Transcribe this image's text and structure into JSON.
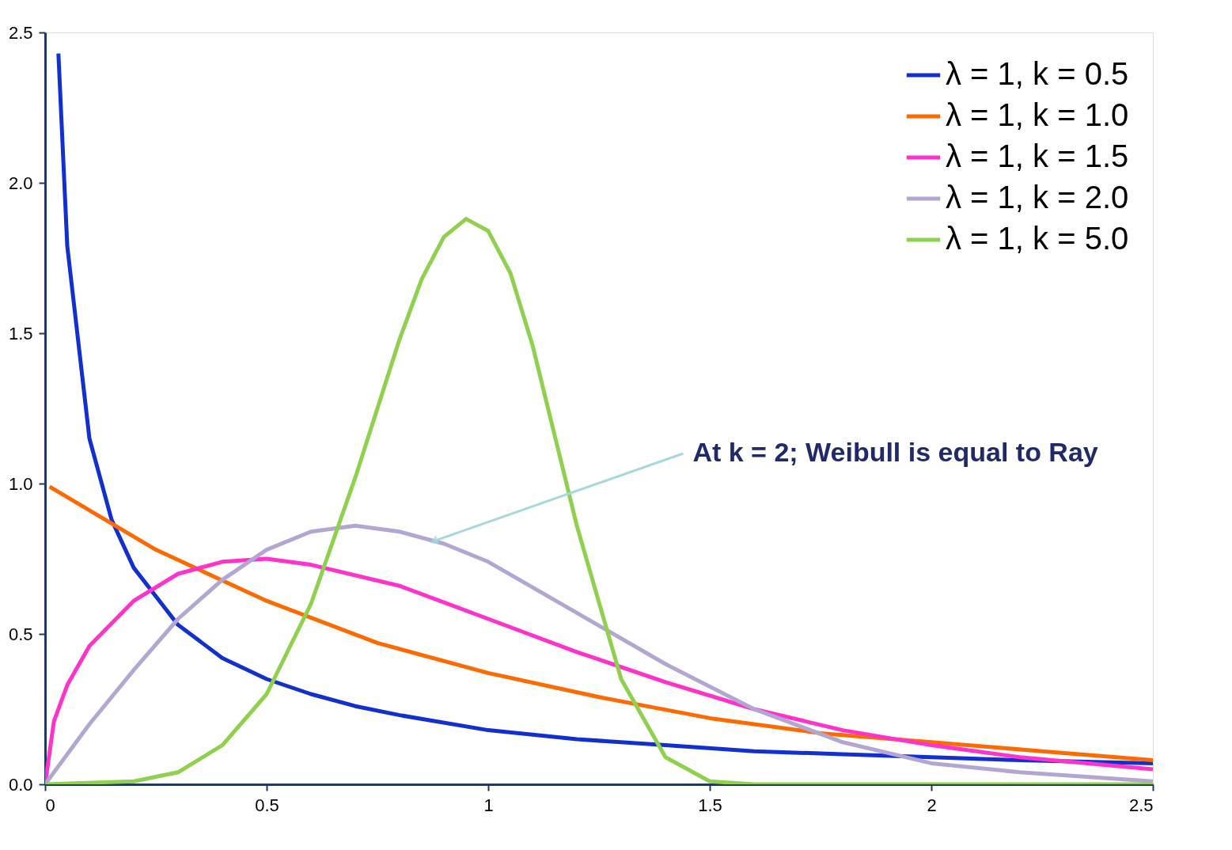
{
  "chart_data": {
    "type": "line",
    "xlim": [
      0,
      2.5
    ],
    "ylim": [
      0,
      2.5
    ],
    "xticks": [
      0,
      0.5,
      1,
      1.5,
      2,
      2.5
    ],
    "yticks": [
      {
        "value": 0,
        "label": "0.0"
      },
      {
        "value": 0.5,
        "label": "0.5"
      },
      {
        "value": 1,
        "label": "1.0"
      },
      {
        "value": 1.5,
        "label": "1.5"
      },
      {
        "value": 2,
        "label": "2.0"
      },
      {
        "value": 2.5,
        "label": "2.5"
      }
    ],
    "grid": false,
    "legend": "top right",
    "marker": "none",
    "annotations": [
      {
        "text": "At k = 2; Weibull is equal to Ray",
        "x": 0.88,
        "y": 0.81
      }
    ],
    "series": [
      {
        "name": "λ = 1, k = 0.5",
        "color": "#1230d0",
        "x": [
          0.03,
          0.05,
          0.1,
          0.15,
          0.2,
          0.3,
          0.4,
          0.5,
          0.6,
          0.7,
          0.8,
          1.0,
          1.2,
          1.4,
          1.6,
          1.8,
          2.0,
          2.2,
          2.5
        ],
        "values": [
          2.43,
          1.79,
          1.15,
          0.88,
          0.72,
          0.53,
          0.42,
          0.35,
          0.3,
          0.26,
          0.23,
          0.18,
          0.15,
          0.13,
          0.11,
          0.1,
          0.09,
          0.08,
          0.07
        ]
      },
      {
        "name": "λ = 1, k = 1.0",
        "color": "#ff6a00",
        "x": [
          0.01,
          0.25,
          0.5,
          0.75,
          1.0,
          1.25,
          1.5,
          1.75,
          2.0,
          2.25,
          2.5
        ],
        "values": [
          0.99,
          0.78,
          0.61,
          0.47,
          0.37,
          0.29,
          0.22,
          0.17,
          0.14,
          0.11,
          0.08
        ]
      },
      {
        "name": "λ = 1, k = 1.5",
        "color": "#ff33cc",
        "x": [
          0,
          0.02,
          0.05,
          0.1,
          0.2,
          0.3,
          0.4,
          0.5,
          0.6,
          0.8,
          1.0,
          1.2,
          1.4,
          1.6,
          1.8,
          2.0,
          2.2,
          2.5
        ],
        "values": [
          0,
          0.21,
          0.33,
          0.46,
          0.61,
          0.7,
          0.74,
          0.75,
          0.73,
          0.66,
          0.55,
          0.44,
          0.34,
          0.25,
          0.18,
          0.13,
          0.09,
          0.05
        ]
      },
      {
        "name": "λ = 1, k = 2.0",
        "color": "#b4a6d2",
        "x": [
          0,
          0.1,
          0.2,
          0.3,
          0.4,
          0.5,
          0.6,
          0.7,
          0.8,
          0.9,
          1.0,
          1.2,
          1.4,
          1.6,
          1.8,
          2.0,
          2.2,
          2.5
        ],
        "values": [
          0,
          0.2,
          0.38,
          0.55,
          0.68,
          0.78,
          0.84,
          0.86,
          0.84,
          0.8,
          0.74,
          0.57,
          0.4,
          0.25,
          0.14,
          0.07,
          0.04,
          0.01
        ]
      },
      {
        "name": "λ = 1, k = 5.0",
        "color": "#8fd14f",
        "x": [
          0,
          0.2,
          0.3,
          0.4,
          0.5,
          0.6,
          0.7,
          0.8,
          0.85,
          0.9,
          0.95,
          1.0,
          1.05,
          1.1,
          1.2,
          1.3,
          1.4,
          1.5,
          1.6,
          1.8,
          2.5
        ],
        "values": [
          0,
          0.01,
          0.04,
          0.13,
          0.3,
          0.6,
          1.02,
          1.48,
          1.68,
          1.82,
          1.88,
          1.84,
          1.7,
          1.46,
          0.86,
          0.35,
          0.09,
          0.01,
          0,
          0,
          0
        ]
      }
    ]
  }
}
